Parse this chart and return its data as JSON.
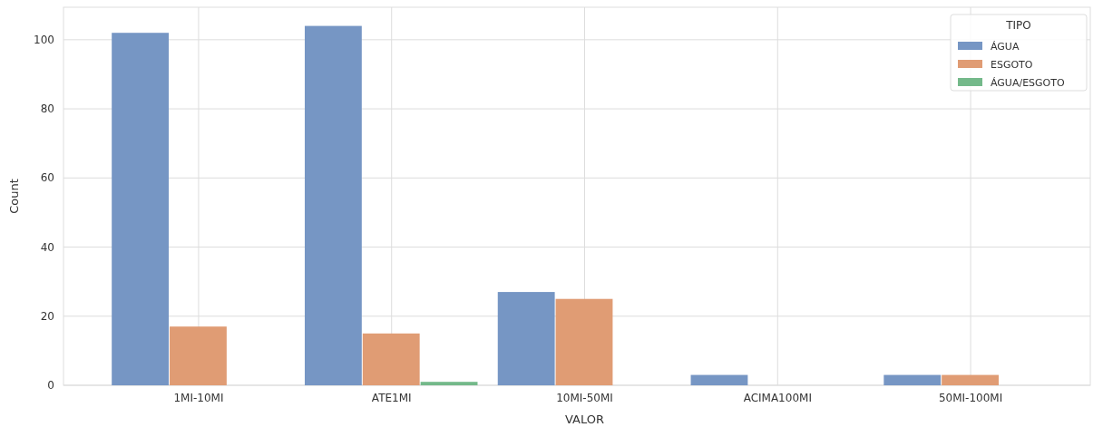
{
  "chart_data": {
    "type": "bar",
    "xlabel": "VALOR",
    "ylabel": "Count",
    "legend_title": "TIPO",
    "categories": [
      "1MI-10MI",
      "ATE1MI",
      "10MI-50MI",
      "ACIMA100MI",
      "50MI-100MI"
    ],
    "series": [
      {
        "name": "ÁGUA",
        "color": "#7696c4",
        "values": [
          102,
          104,
          27,
          3,
          3
        ]
      },
      {
        "name": "ESGOTO",
        "color": "#e09c74",
        "values": [
          17,
          15,
          25,
          0,
          3
        ]
      },
      {
        "name": "ÁGUA/ESGOTO",
        "color": "#74b98a",
        "values": [
          0,
          1,
          0,
          0,
          0
        ]
      }
    ],
    "ylim": [
      0,
      109.4
    ],
    "yticks": [
      0,
      20,
      40,
      60,
      80,
      100
    ],
    "grid": true,
    "legend": "top right"
  }
}
